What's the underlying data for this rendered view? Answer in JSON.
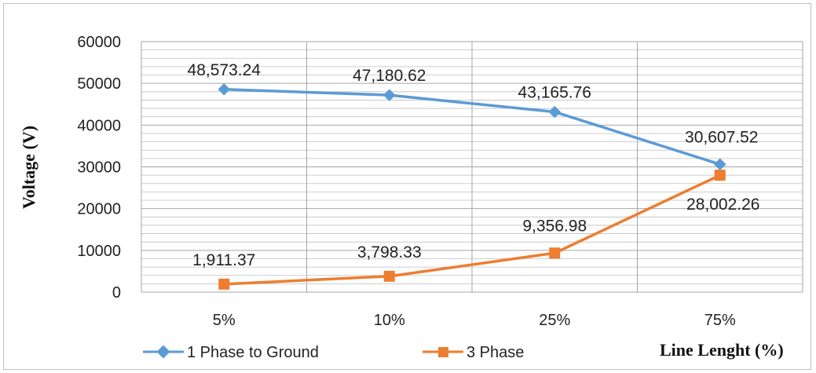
{
  "chart_data": {
    "type": "line",
    "categories": [
      "5%",
      "10%",
      "25%",
      "75%"
    ],
    "ylabel": "Voltage (V)",
    "xlabel": "Line Lenght (%)",
    "ylim": [
      0,
      60000
    ],
    "yticks": [
      "0",
      "10000",
      "20000",
      "30000",
      "40000",
      "50000",
      "60000"
    ],
    "grid": true,
    "legend_position": "bottom",
    "series": [
      {
        "name": "1 Phase to Ground",
        "color": "#5b9bd5",
        "marker": "diamond",
        "values": [
          48573.24,
          47180.62,
          43165.76,
          30607.52
        ],
        "labels": [
          "48,573.24",
          "47,180.62",
          "43,165.76",
          "30,607.52"
        ]
      },
      {
        "name": "3 Phase",
        "color": "#ed7d31",
        "marker": "square",
        "values": [
          1911.37,
          3798.33,
          9356.98,
          28002.26
        ],
        "labels": [
          "1,911.37",
          "3,798.33",
          "9,356.98",
          "28,002.26"
        ]
      }
    ]
  }
}
